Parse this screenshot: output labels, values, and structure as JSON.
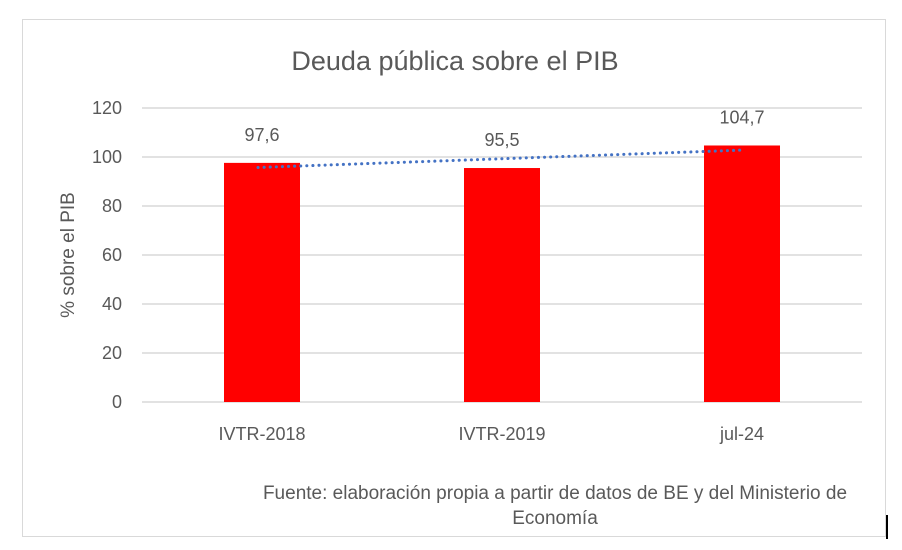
{
  "chart_data": {
    "type": "bar",
    "title": "Deuda pública sobre el PIB",
    "ylabel": "% sobre el PIB",
    "xlabel": "",
    "categories": [
      "IVTR-2018",
      "IVTR-2019",
      "jul-24"
    ],
    "values": [
      97.6,
      95.5,
      104.7
    ],
    "data_labels": [
      "97,6",
      "95,5",
      "104,7"
    ],
    "ylim": [
      0,
      120
    ],
    "yticks": [
      0,
      20,
      40,
      60,
      80,
      100,
      120
    ],
    "grid": true,
    "trendline": {
      "type": "linear",
      "style": "dotted",
      "color": "#4472c4"
    },
    "bar_color": "#ff0000",
    "source": "Fuente: elaboración propia a partir de datos de BE y del Ministerio de Economía"
  }
}
